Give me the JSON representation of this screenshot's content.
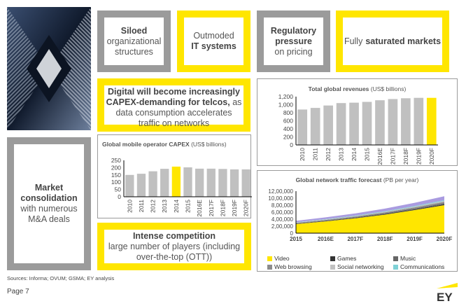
{
  "boxes": {
    "siloed": {
      "bold": "Siloed",
      "rest": "organizational structures"
    },
    "outmoded": {
      "pre": "Outmoded",
      "bold": "IT systems"
    },
    "regulatory": {
      "bold": "Regulatory pressure",
      "rest": "on pricing"
    },
    "saturated": {
      "pre": "Fully",
      "bold": "saturated markets"
    },
    "digital": {
      "bold": "Digital will become increasingly CAPEX-demanding for telcos,",
      "rest": "as data consumption accelerates traffic on networks"
    },
    "consolidation": {
      "bold": "Market consolidation",
      "rest": "with numerous M&A deals"
    },
    "competition": {
      "bold": "Intense competition",
      "rest": "large number of players (including over-the-top (OTT))"
    }
  },
  "footer": {
    "sources": "Sources: Informa; OVUM; GSMA; EY analysis",
    "page": "Page 7",
    "logo": "EY"
  },
  "colors": {
    "yellow": "#ffe600",
    "gray_bar": "#c0c0c0",
    "border_gray": "#9b9b9b"
  },
  "chart_data": [
    {
      "id": "revenue",
      "type": "bar",
      "title": "Total global revenues",
      "title_unit": "(US$ billions)",
      "categories": [
        "2010",
        "2011",
        "2012",
        "2013",
        "2014",
        "2015",
        "2016E",
        "2017F",
        "2018F",
        "2019F",
        "2020F"
      ],
      "values": [
        880,
        920,
        980,
        1040,
        1050,
        1070,
        1110,
        1140,
        1160,
        1170,
        1170
      ],
      "highlight": "2020F",
      "ylim": [
        0,
        1200
      ],
      "yticks": [
        "0",
        "200",
        "400",
        "600",
        "800",
        "1,000",
        "1,200"
      ],
      "grid": false
    },
    {
      "id": "capex",
      "type": "bar",
      "title": "Global mobile operator CAPEX",
      "title_unit": "(US$ billions)",
      "categories": [
        "2010",
        "2011",
        "2012",
        "2013",
        "2014",
        "2015",
        "2016E",
        "2017F",
        "2018F",
        "2019F",
        "2020F"
      ],
      "values": [
        150,
        158,
        175,
        192,
        207,
        202,
        193,
        193,
        191,
        188,
        188
      ],
      "highlight": "2014",
      "ylim": [
        0,
        250
      ],
      "yticks": [
        "0",
        "50",
        "100",
        "150",
        "200",
        "250"
      ],
      "grid": false
    },
    {
      "id": "traffic",
      "type": "area",
      "stacked": true,
      "title": "Global network traffic forecast",
      "title_unit": "(PB per year)",
      "categories": [
        "2015",
        "2016E",
        "2017F",
        "2018F",
        "2019F",
        "2020F"
      ],
      "ylim": [
        0,
        1200000
      ],
      "yticks": [
        "0",
        "2,00,000",
        "4,00,000",
        "6,00,000",
        "8,00,000",
        "10,00,000",
        "12,00,000"
      ],
      "legend_position": "bottom",
      "series": [
        {
          "name": "Video",
          "color": "#ffe600",
          "values": [
            260000,
            338000,
            425000,
            530000,
            660000,
            800000
          ]
        },
        {
          "name": "Games",
          "color": "#333333",
          "values": [
            8000,
            10000,
            12000,
            15000,
            18000,
            22000
          ]
        },
        {
          "name": "Music",
          "color": "#666666",
          "values": [
            12000,
            15000,
            18000,
            22000,
            27000,
            33000
          ]
        },
        {
          "name": "Web browsing",
          "color": "#8c8c8c",
          "values": [
            15000,
            18000,
            22000,
            27000,
            33000,
            40000
          ]
        },
        {
          "name": "Social networking",
          "color": "#c0c0c0",
          "values": [
            10000,
            12000,
            15000,
            18000,
            22000,
            27000
          ]
        },
        {
          "name": "Communications",
          "color": "#7fd1d6",
          "values": [
            8000,
            10000,
            12000,
            15000,
            18000,
            22000
          ]
        },
        {
          "color": "#a99be0",
          "values": [
            40000,
            50000,
            60000,
            75000,
            90000,
            110000
          ]
        }
      ]
    }
  ]
}
